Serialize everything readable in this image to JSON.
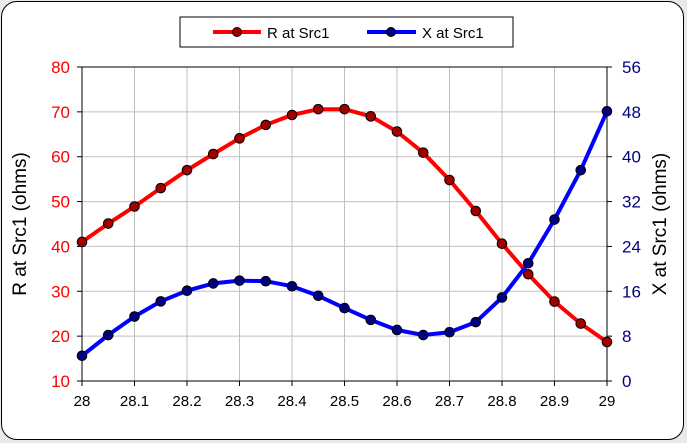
{
  "chart_data": {
    "type": "line",
    "x": [
      28.0,
      28.05,
      28.1,
      28.15,
      28.2,
      28.25,
      28.3,
      28.35,
      28.4,
      28.45,
      28.5,
      28.55,
      28.6,
      28.65,
      28.7,
      28.75,
      28.8,
      28.85,
      28.9,
      28.95,
      29.0
    ],
    "xlim": [
      28,
      29
    ],
    "x_ticks": [
      28,
      28.1,
      28.2,
      28.3,
      28.4,
      28.5,
      28.6,
      28.7,
      28.8,
      28.9,
      29
    ],
    "x_tick_labels": [
      "28",
      "28.1",
      "28.2",
      "28.3",
      "28.4",
      "28.5",
      "28.6",
      "28.7",
      "28.8",
      "28.9",
      "29"
    ],
    "ylabel_left": "R at Src1 (ohms)",
    "ylabel_right": "X at Src1 (ohms)",
    "ylim_left": [
      10,
      80
    ],
    "y_ticks_left": [
      "10",
      "20",
      "30",
      "40",
      "50",
      "60",
      "70",
      "80"
    ],
    "ylim_right": [
      0,
      56
    ],
    "y_ticks_right": [
      "0",
      "8",
      "16",
      "24",
      "32",
      "40",
      "48",
      "56"
    ],
    "grid": true,
    "legend_position": "top-center",
    "series": [
      {
        "name": "R at Src1",
        "axis": "left",
        "color": "#ff0000",
        "values": [
          41.0,
          45.1,
          48.9,
          53.0,
          57.0,
          60.6,
          64.1,
          67.1,
          69.3,
          70.6,
          70.6,
          69.0,
          65.6,
          60.9,
          54.8,
          47.9,
          40.6,
          33.8,
          27.7,
          22.8,
          18.7
        ]
      },
      {
        "name": "X at Src1",
        "axis": "right",
        "color": "#0000ff",
        "values": [
          4.5,
          8.2,
          11.5,
          14.2,
          16.1,
          17.4,
          17.9,
          17.8,
          16.9,
          15.2,
          13.0,
          10.9,
          9.1,
          8.2,
          8.7,
          10.5,
          14.9,
          21.0,
          28.8,
          37.6,
          48.1
        ]
      }
    ]
  },
  "colors": {
    "left_axis_text": "#ff0000",
    "right_axis_text": "#000080",
    "marker_fill": "#a00000"
  }
}
